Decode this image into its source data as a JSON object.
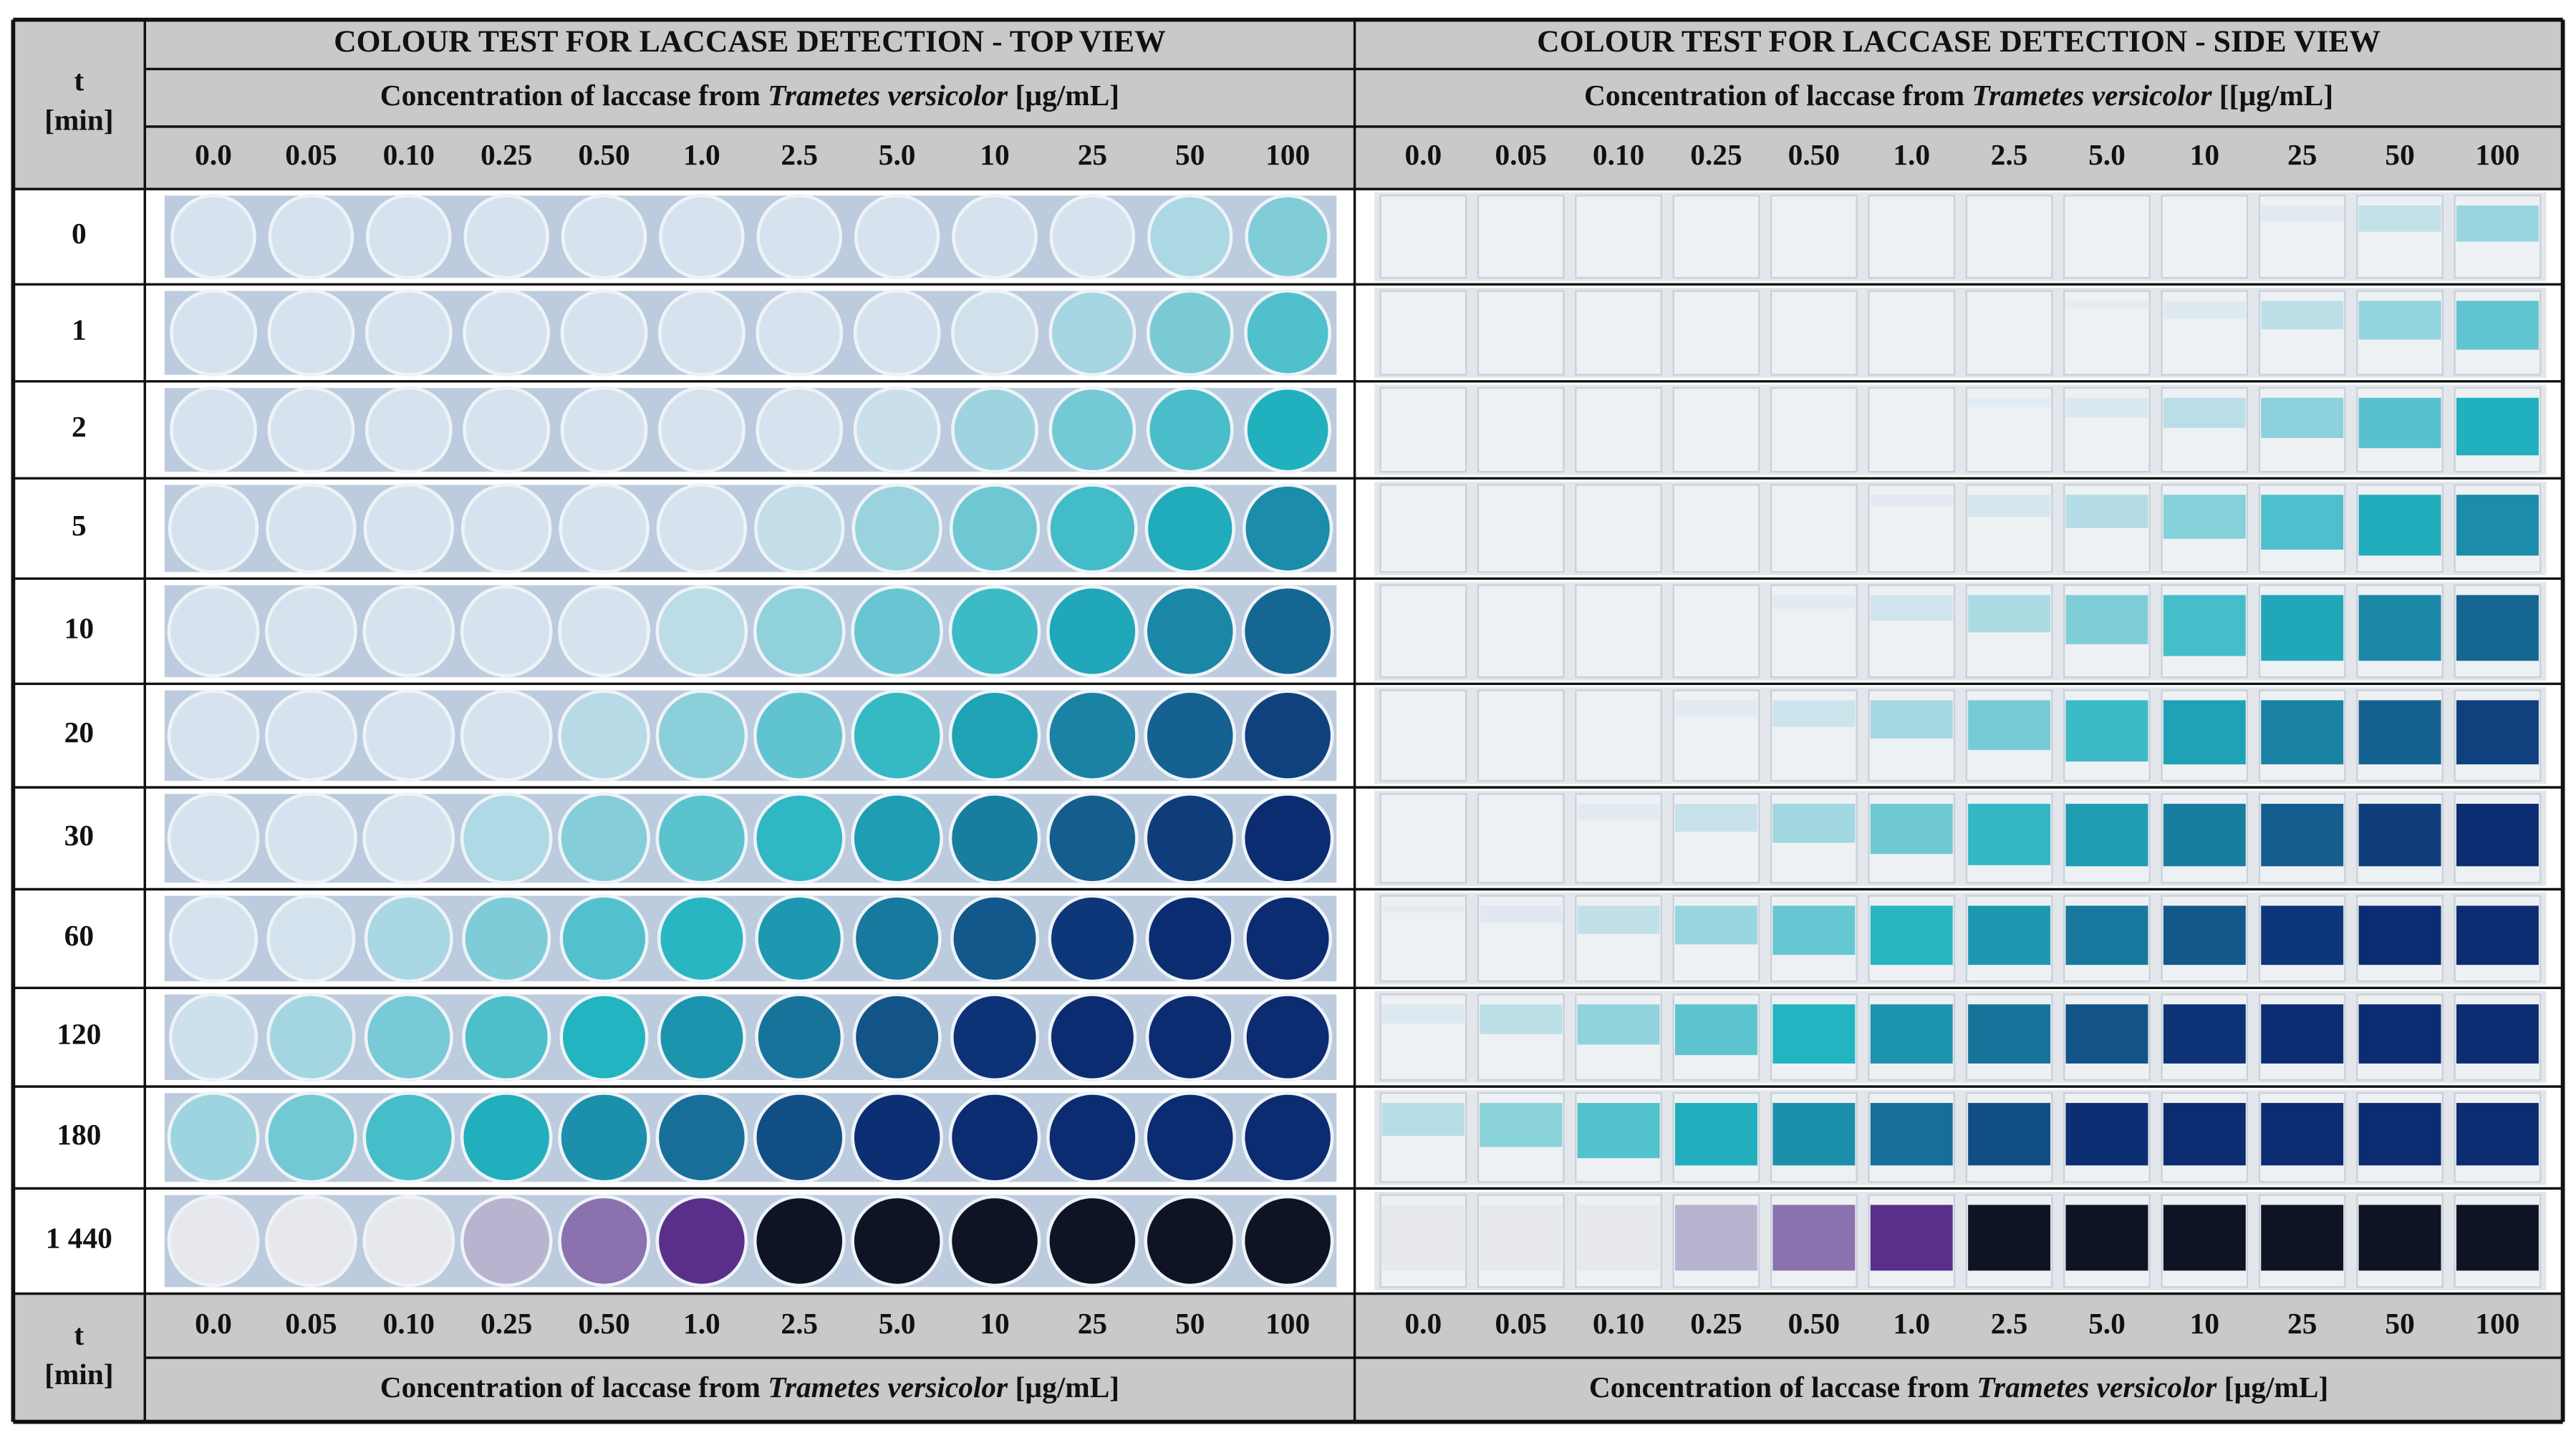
{
  "table": {
    "corner_header": {
      "line1": "t",
      "line2": "[min]"
    },
    "top_view": {
      "title": "COLOUR TEST FOR LACCASE DETECTION - TOP VIEW",
      "concentration_label": {
        "before": "Concentration of laccase from",
        "species": "Trametes versicolor",
        "unit": "[µg/mL]"
      },
      "footer_label": {
        "before": "Concentration of laccase from",
        "species": "Trametes versicolor",
        "unit": "[µg/mL]"
      }
    },
    "side_view": {
      "title": "COLOUR TEST FOR LACCASE DETECTION - SIDE VIEW",
      "concentration_label": {
        "before": "Concentration of laccase from",
        "species": "Trametes versicolor",
        "unit": "[[µg/mL]"
      },
      "footer_label": {
        "before": "Concentration of laccase from",
        "species": "Trametes versicolor",
        "unit": "[µg/mL]"
      }
    },
    "concentrations": [
      "0.0",
      "0.05",
      "0.10",
      "0.25",
      "0.50",
      "1.0",
      "2.5",
      "5.0",
      "10",
      "25",
      "50",
      "100"
    ],
    "times": [
      "0",
      "1",
      "2",
      "5",
      "10",
      "20",
      "30",
      "60",
      "120",
      "180",
      "1 440"
    ]
  }
}
